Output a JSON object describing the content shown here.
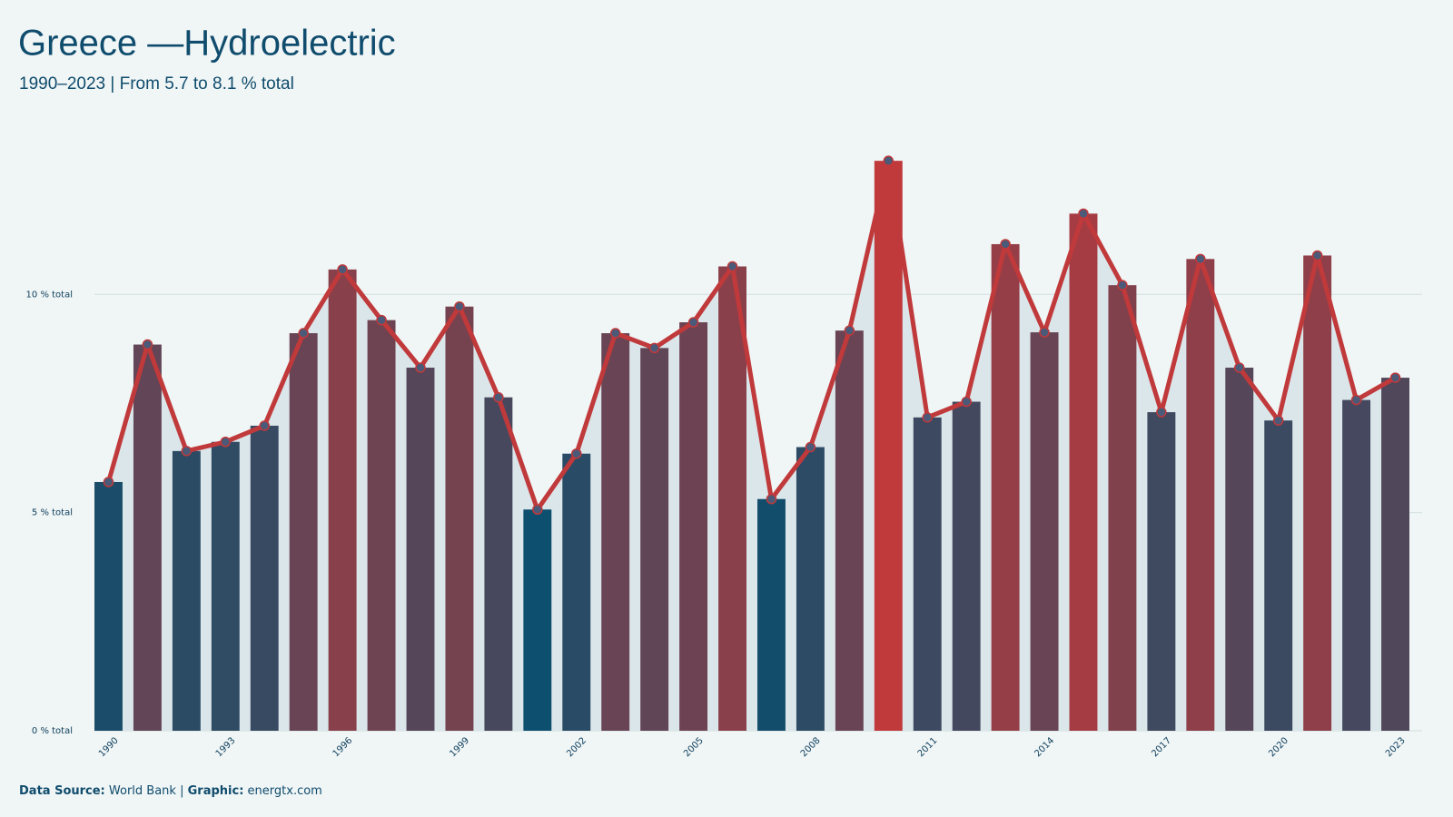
{
  "chart_data": {
    "type": "bar",
    "title": "Greece —Hydroelectric",
    "subtitle": "1990–2023 | From 5.7 to 8.1 % total",
    "categories": [
      "1990",
      null,
      null,
      "1993",
      null,
      null,
      "1996",
      null,
      null,
      "1999",
      null,
      null,
      "2002",
      null,
      null,
      "2005",
      null,
      null,
      "2008",
      null,
      null,
      "2011",
      null,
      null,
      "2014",
      null,
      null,
      "2017",
      null,
      null,
      "2020",
      null,
      null,
      "2023"
    ],
    "values": [
      5.7,
      8.85,
      6.41,
      6.62,
      6.99,
      9.11,
      10.57,
      9.41,
      8.32,
      9.72,
      7.64,
      5.07,
      6.35,
      9.11,
      8.77,
      9.36,
      10.64,
      5.31,
      6.5,
      9.17,
      13.06,
      7.18,
      7.54,
      11.15,
      9.13,
      11.85,
      10.21,
      7.3,
      10.81,
      8.32,
      7.11,
      10.89,
      7.58,
      8.09
    ],
    "color_low": "#0d4f6e",
    "color_high": "#c0393b",
    "line": true,
    "line_color": "#c0393b",
    "point_color": "#4a5a78",
    "area": true,
    "area_color": "#dbe6ea",
    "ylim": [
      0,
      13.5
    ],
    "yticks": [
      {
        "value": 0,
        "label": "0 % total"
      },
      {
        "value": 5,
        "label": "5 % total"
      },
      {
        "value": 10,
        "label": "10 % total"
      }
    ],
    "grid": true,
    "footer": {
      "source_label": "Data Source:",
      "source": "World Bank",
      "separator": "|",
      "graphic_label": "Graphic:",
      "graphic": "energtx.com"
    }
  }
}
